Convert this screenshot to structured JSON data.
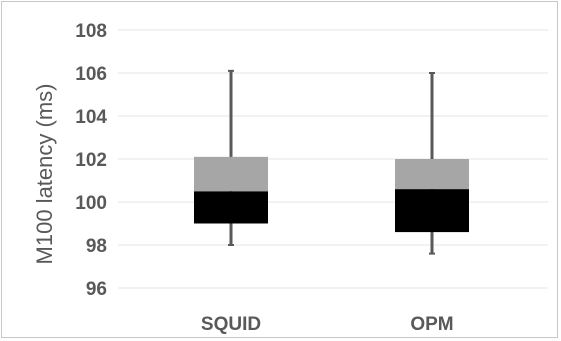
{
  "chart_data": {
    "type": "box",
    "title": "",
    "xlabel": "",
    "ylabel": "M100 latency (ms)",
    "ylim": [
      96,
      108
    ],
    "yticks": [
      96,
      98,
      100,
      102,
      104,
      106,
      108
    ],
    "ytick_labels": [
      "96",
      "98",
      "100",
      "102",
      "104",
      "106",
      "108"
    ],
    "grid": true,
    "categories": [
      "SQUID",
      "OPM"
    ],
    "boxes": [
      {
        "category": "SQUID",
        "min": 98.0,
        "q1": 99.0,
        "median": 100.5,
        "q3": 102.1,
        "max": 106.1
      },
      {
        "category": "OPM",
        "min": 97.6,
        "q1": 98.6,
        "median": 100.6,
        "q3": 102.0,
        "max": 106.0
      }
    ],
    "colors": {
      "lower_box": "#000000",
      "upper_box": "#a6a6a6",
      "whisker": "#595959",
      "grid": "#e6e6e6",
      "text": "#595959"
    }
  }
}
